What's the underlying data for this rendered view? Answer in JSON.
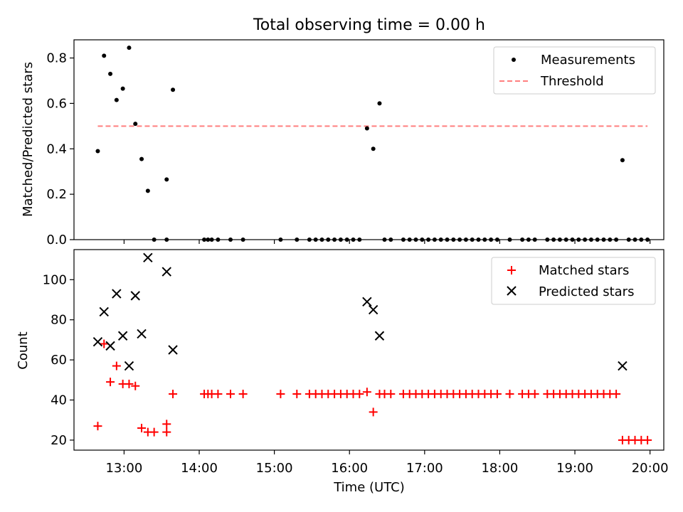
{
  "title": "Total observing time = 0.00 h",
  "chart_data": [
    {
      "type": "scatter",
      "panel": "top",
      "xlabel": "",
      "ylabel": "Matched/Predicted stars",
      "ylim": [
        0,
        0.88
      ],
      "yticks": [
        0.0,
        0.2,
        0.4,
        0.6,
        0.8
      ],
      "ytick_labels": [
        "0.0",
        "0.2",
        "0.4",
        "0.6",
        "0.8"
      ],
      "legend_position": "top-right",
      "legend": [
        "Measurements",
        "Threshold"
      ],
      "series": [
        {
          "name": "Measurements",
          "marker": "dot",
          "color": "#000000",
          "points": [
            [
              "12:39",
              0.39
            ],
            [
              "12:44",
              0.81
            ],
            [
              "12:49",
              0.73
            ],
            [
              "12:54",
              0.615
            ],
            [
              "12:59",
              0.665
            ],
            [
              "13:04",
              0.845
            ],
            [
              "13:09",
              0.51
            ],
            [
              "13:14",
              0.355
            ],
            [
              "13:19",
              0.215
            ],
            [
              "13:24",
              0.0
            ],
            [
              "13:34",
              0.265
            ],
            [
              "13:34",
              0.0
            ],
            [
              "13:39",
              0.66
            ],
            [
              "14:04",
              0.0
            ],
            [
              "14:07",
              0.0
            ],
            [
              "14:10",
              0.0
            ],
            [
              "14:15",
              0.0
            ],
            [
              "14:25",
              0.0
            ],
            [
              "14:35",
              0.0
            ],
            [
              "15:05",
              0.0
            ],
            [
              "15:18",
              0.0
            ],
            [
              "15:28",
              0.0
            ],
            [
              "15:33",
              0.0
            ],
            [
              "15:38",
              0.0
            ],
            [
              "15:43",
              0.0
            ],
            [
              "15:48",
              0.0
            ],
            [
              "15:53",
              0.0
            ],
            [
              "15:58",
              0.0
            ],
            [
              "16:03",
              0.0
            ],
            [
              "16:08",
              0.0
            ],
            [
              "16:14",
              0.49
            ],
            [
              "16:19",
              0.4
            ],
            [
              "16:24",
              0.6
            ],
            [
              "16:28",
              0.0
            ],
            [
              "16:33",
              0.0
            ],
            [
              "16:43",
              0.0
            ],
            [
              "16:48",
              0.0
            ],
            [
              "16:53",
              0.0
            ],
            [
              "16:58",
              0.0
            ],
            [
              "17:03",
              0.0
            ],
            [
              "17:08",
              0.0
            ],
            [
              "17:13",
              0.0
            ],
            [
              "17:18",
              0.0
            ],
            [
              "17:23",
              0.0
            ],
            [
              "17:28",
              0.0
            ],
            [
              "17:33",
              0.0
            ],
            [
              "17:38",
              0.0
            ],
            [
              "17:43",
              0.0
            ],
            [
              "17:48",
              0.0
            ],
            [
              "17:53",
              0.0
            ],
            [
              "17:58",
              0.0
            ],
            [
              "18:08",
              0.0
            ],
            [
              "18:18",
              0.0
            ],
            [
              "18:23",
              0.0
            ],
            [
              "18:28",
              0.0
            ],
            [
              "18:38",
              0.0
            ],
            [
              "18:43",
              0.0
            ],
            [
              "18:48",
              0.0
            ],
            [
              "18:53",
              0.0
            ],
            [
              "18:58",
              0.0
            ],
            [
              "19:03",
              0.0
            ],
            [
              "19:08",
              0.0
            ],
            [
              "19:13",
              0.0
            ],
            [
              "19:18",
              0.0
            ],
            [
              "19:23",
              0.0
            ],
            [
              "19:28",
              0.0
            ],
            [
              "19:33",
              0.0
            ],
            [
              "19:38",
              0.35
            ],
            [
              "19:43",
              0.0
            ],
            [
              "19:48",
              0.0
            ],
            [
              "19:53",
              0.0
            ],
            [
              "19:58",
              0.0
            ]
          ]
        },
        {
          "name": "Threshold",
          "style": "dashed",
          "color": "#ff7f7f",
          "points": [
            [
              "12:39",
              0.5
            ],
            [
              "19:58",
              0.5
            ]
          ]
        }
      ]
    },
    {
      "type": "scatter",
      "panel": "bottom",
      "xlabel": "Time (UTC)",
      "ylabel": "Count",
      "ylim": [
        15,
        115
      ],
      "yticks": [
        20,
        40,
        60,
        80,
        100
      ],
      "ytick_labels": [
        "20",
        "40",
        "60",
        "80",
        "100"
      ],
      "xlim": [
        "12:20",
        "20:11"
      ],
      "xticks": [
        "13:00",
        "14:00",
        "15:00",
        "16:00",
        "17:00",
        "18:00",
        "19:00",
        "20:00"
      ],
      "legend_position": "top-right",
      "legend": [
        "Matched stars",
        "Predicted stars"
      ],
      "series": [
        {
          "name": "Matched stars",
          "marker": "plus",
          "color": "#ff0000",
          "points": [
            [
              "12:39",
              27
            ],
            [
              "12:44",
              68
            ],
            [
              "12:49",
              49
            ],
            [
              "12:54",
              57
            ],
            [
              "12:59",
              48
            ],
            [
              "13:04",
              48
            ],
            [
              "13:09",
              47
            ],
            [
              "13:14",
              26
            ],
            [
              "13:19",
              24
            ],
            [
              "13:24",
              24
            ],
            [
              "13:34",
              28
            ],
            [
              "13:34",
              24
            ],
            [
              "13:39",
              43
            ],
            [
              "14:04",
              43
            ],
            [
              "14:07",
              43
            ],
            [
              "14:10",
              43
            ],
            [
              "14:15",
              43
            ],
            [
              "14:25",
              43
            ],
            [
              "14:35",
              43
            ],
            [
              "15:05",
              43
            ],
            [
              "15:18",
              43
            ],
            [
              "15:28",
              43
            ],
            [
              "15:33",
              43
            ],
            [
              "15:38",
              43
            ],
            [
              "15:43",
              43
            ],
            [
              "15:48",
              43
            ],
            [
              "15:53",
              43
            ],
            [
              "15:58",
              43
            ],
            [
              "16:03",
              43
            ],
            [
              "16:08",
              43
            ],
            [
              "16:14",
              44
            ],
            [
              "16:19",
              34
            ],
            [
              "16:24",
              43
            ],
            [
              "16:28",
              43
            ],
            [
              "16:33",
              43
            ],
            [
              "16:43",
              43
            ],
            [
              "16:48",
              43
            ],
            [
              "16:53",
              43
            ],
            [
              "16:58",
              43
            ],
            [
              "17:03",
              43
            ],
            [
              "17:08",
              43
            ],
            [
              "17:13",
              43
            ],
            [
              "17:18",
              43
            ],
            [
              "17:23",
              43
            ],
            [
              "17:28",
              43
            ],
            [
              "17:33",
              43
            ],
            [
              "17:38",
              43
            ],
            [
              "17:43",
              43
            ],
            [
              "17:48",
              43
            ],
            [
              "17:53",
              43
            ],
            [
              "17:58",
              43
            ],
            [
              "18:08",
              43
            ],
            [
              "18:18",
              43
            ],
            [
              "18:23",
              43
            ],
            [
              "18:28",
              43
            ],
            [
              "18:38",
              43
            ],
            [
              "18:43",
              43
            ],
            [
              "18:48",
              43
            ],
            [
              "18:53",
              43
            ],
            [
              "18:58",
              43
            ],
            [
              "19:03",
              43
            ],
            [
              "19:08",
              43
            ],
            [
              "19:13",
              43
            ],
            [
              "19:18",
              43
            ],
            [
              "19:23",
              43
            ],
            [
              "19:28",
              43
            ],
            [
              "19:33",
              43
            ],
            [
              "19:38",
              20
            ],
            [
              "19:43",
              20
            ],
            [
              "19:48",
              20
            ],
            [
              "19:53",
              20
            ],
            [
              "19:58",
              20
            ]
          ]
        },
        {
          "name": "Predicted stars",
          "marker": "x",
          "color": "#000000",
          "points": [
            [
              "12:39",
              69
            ],
            [
              "12:44",
              84
            ],
            [
              "12:49",
              67
            ],
            [
              "12:54",
              93
            ],
            [
              "12:59",
              72
            ],
            [
              "13:04",
              57
            ],
            [
              "13:09",
              92
            ],
            [
              "13:14",
              73
            ],
            [
              "13:19",
              111
            ],
            [
              "13:34",
              104
            ],
            [
              "13:39",
              65
            ],
            [
              "16:14",
              89
            ],
            [
              "16:19",
              85
            ],
            [
              "16:24",
              72
            ],
            [
              "19:38",
              57
            ]
          ]
        }
      ]
    }
  ]
}
